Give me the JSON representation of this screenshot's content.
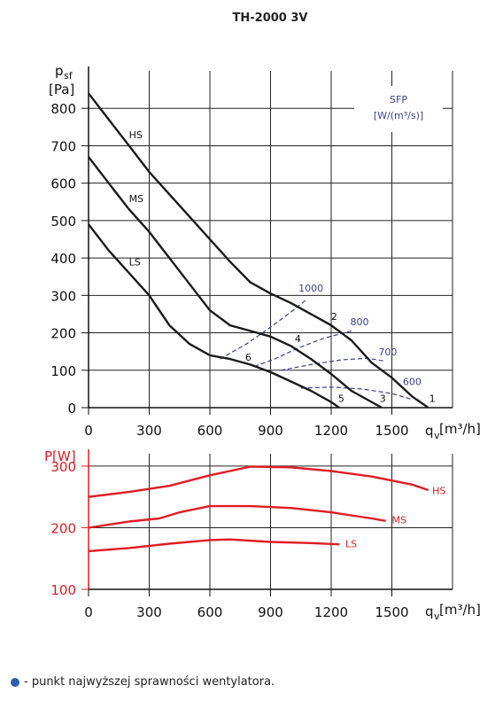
{
  "chart_data": [
    {
      "type": "line",
      "title": "TH-2000 3V",
      "ylabel_main": "p",
      "ylabel_sub": "sf",
      "ylabel_unit": "[Pa]",
      "xlabel_main": "q",
      "xlabel_sub": "v",
      "xlabel_unit": "[m³/h]",
      "xlim": [
        0,
        1800
      ],
      "ylim": [
        0,
        900
      ],
      "xticks": [
        0,
        300,
        600,
        900,
        1200,
        1500
      ],
      "yticks": [
        0,
        100,
        200,
        300,
        400,
        500,
        600,
        700,
        800
      ],
      "grid": true,
      "sfp_label_1": "SFP",
      "sfp_label_2": "[W/(m³/s)]",
      "series": [
        {
          "name": "HS",
          "label_at": [
            200,
            720
          ],
          "points": [
            [
              0,
              840
            ],
            [
              100,
              770
            ],
            [
              200,
              700
            ],
            [
              300,
              630
            ],
            [
              400,
              570
            ],
            [
              500,
              510
            ],
            [
              600,
              450
            ],
            [
              700,
              390
            ],
            [
              800,
              335
            ],
            [
              900,
              305
            ],
            [
              1000,
              280
            ],
            [
              1100,
              250
            ],
            [
              1200,
              220
            ],
            [
              1300,
              180
            ],
            [
              1400,
              120
            ],
            [
              1500,
              80
            ],
            [
              1600,
              30
            ],
            [
              1680,
              0
            ]
          ]
        },
        {
          "name": "MS",
          "label_at": [
            200,
            550
          ],
          "points": [
            [
              0,
              670
            ],
            [
              100,
              600
            ],
            [
              200,
              530
            ],
            [
              300,
              470
            ],
            [
              400,
              400
            ],
            [
              500,
              330
            ],
            [
              600,
              260
            ],
            [
              700,
              220
            ],
            [
              800,
              205
            ],
            [
              900,
              190
            ],
            [
              1000,
              165
            ],
            [
              1100,
              130
            ],
            [
              1200,
              90
            ],
            [
              1300,
              45
            ],
            [
              1450,
              0
            ]
          ]
        },
        {
          "name": "LS",
          "label_at": [
            200,
            380
          ],
          "points": [
            [
              0,
              490
            ],
            [
              100,
              420
            ],
            [
              200,
              360
            ],
            [
              300,
              300
            ],
            [
              400,
              220
            ],
            [
              500,
              170
            ],
            [
              600,
              140
            ],
            [
              700,
              130
            ],
            [
              800,
              115
            ],
            [
              900,
              95
            ],
            [
              1000,
              70
            ],
            [
              1100,
              45
            ],
            [
              1200,
              15
            ],
            [
              1240,
              0
            ]
          ]
        }
      ],
      "sfp_curves": [
        {
          "label": "1000",
          "label_at": [
            1100,
            310
          ],
          "points": [
            [
              650,
              130
            ],
            [
              780,
              170
            ],
            [
              900,
              215
            ],
            [
              1000,
              255
            ],
            [
              1080,
              290
            ]
          ]
        },
        {
          "label": "800",
          "label_at": [
            1340,
            220
          ],
          "points": [
            [
              820,
              110
            ],
            [
              920,
              130
            ],
            [
              1040,
              160
            ],
            [
              1160,
              185
            ],
            [
              1300,
              205
            ]
          ]
        },
        {
          "label": "700",
          "label_at": [
            1480,
            140
          ],
          "points": [
            [
              950,
              100
            ],
            [
              1100,
              115
            ],
            [
              1250,
              128
            ],
            [
              1380,
              132
            ],
            [
              1460,
              125
            ]
          ]
        },
        {
          "label": "600",
          "label_at": [
            1600,
            60
          ],
          "points": [
            [
              1050,
              52
            ],
            [
              1200,
              55
            ],
            [
              1350,
              50
            ],
            [
              1500,
              38
            ],
            [
              1600,
              22
            ]
          ]
        }
      ],
      "annotations": [
        {
          "text": "1",
          "at": [
            1700,
            15
          ]
        },
        {
          "text": "2",
          "at": [
            1215,
            235
          ]
        },
        {
          "text": "3",
          "at": [
            1455,
            15
          ]
        },
        {
          "text": "4",
          "at": [
            1035,
            175
          ]
        },
        {
          "text": "5",
          "at": [
            1250,
            15
          ]
        },
        {
          "text": "6",
          "at": [
            790,
            125
          ]
        }
      ]
    },
    {
      "type": "line",
      "ylabel": "P[W]",
      "xlabel_main": "q",
      "xlabel_sub": "v",
      "xlabel_unit": "[m³/h]",
      "xlim": [
        0,
        1800
      ],
      "ylim": [
        100,
        320
      ],
      "xticks": [
        0,
        300,
        600,
        900,
        1200,
        1500
      ],
      "yticks": [
        100,
        200,
        300
      ],
      "grid": true,
      "series": [
        {
          "name": "HS",
          "label_at": [
            1700,
            260
          ],
          "points": [
            [
              0,
              250
            ],
            [
              200,
              258
            ],
            [
              400,
              268
            ],
            [
              600,
              285
            ],
            [
              800,
              299
            ],
            [
              1000,
              298
            ],
            [
              1200,
              292
            ],
            [
              1400,
              283
            ],
            [
              1600,
              270
            ],
            [
              1680,
              261
            ]
          ]
        },
        {
          "name": "MS",
          "label_at": [
            1500,
            213
          ],
          "points": [
            [
              0,
              200
            ],
            [
              200,
              210
            ],
            [
              350,
              215
            ],
            [
              450,
              225
            ],
            [
              600,
              235
            ],
            [
              800,
              235
            ],
            [
              1000,
              232
            ],
            [
              1200,
              225
            ],
            [
              1400,
              215
            ],
            [
              1470,
              211
            ]
          ]
        },
        {
          "name": "LS",
          "label_at": [
            1270,
            174
          ],
          "points": [
            [
              0,
              162
            ],
            [
              200,
              167
            ],
            [
              400,
              174
            ],
            [
              600,
              180
            ],
            [
              700,
              181
            ],
            [
              900,
              177
            ],
            [
              1100,
              175
            ],
            [
              1240,
              173
            ]
          ]
        }
      ]
    }
  ],
  "legend_note": "- punkt najwyższej sprawności wentylatora."
}
